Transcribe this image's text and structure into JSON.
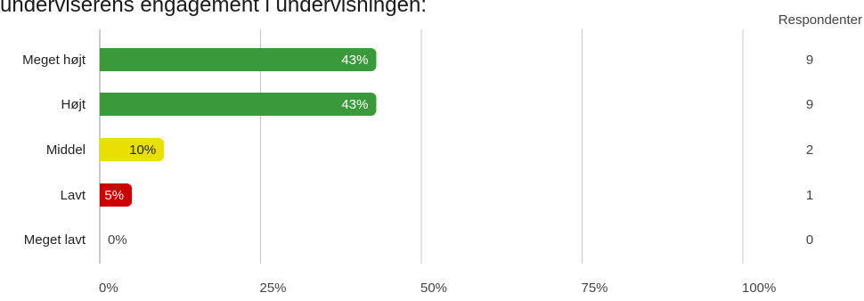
{
  "chart_data": {
    "type": "bar",
    "orientation": "horizontal",
    "title": "underviserens engagement i undervisningen:",
    "categories": [
      "Meget højt",
      "Højt",
      "Middel",
      "Lavt",
      "Meget lavt"
    ],
    "values": [
      43,
      43,
      10,
      5,
      0
    ],
    "value_labels": [
      "43%",
      "43%",
      "10%",
      "5%",
      "0%"
    ],
    "respondents_header": "Respondenter",
    "respondents": [
      "9",
      "9",
      "2",
      "1",
      "0"
    ],
    "colors": [
      "#3a9a3a",
      "#3a9a3a",
      "#e8e000",
      "#cc0000",
      "#3a9a3a"
    ],
    "label_colors": [
      "#ffffff",
      "#ffffff",
      "#222222",
      "#ffffff",
      "#444444"
    ],
    "xlim": [
      0,
      100
    ],
    "xticks": [
      0,
      25,
      50,
      75,
      100
    ],
    "xtick_labels": [
      "0%",
      "25%",
      "50%",
      "75%",
      "100%"
    ],
    "grid": true
  }
}
